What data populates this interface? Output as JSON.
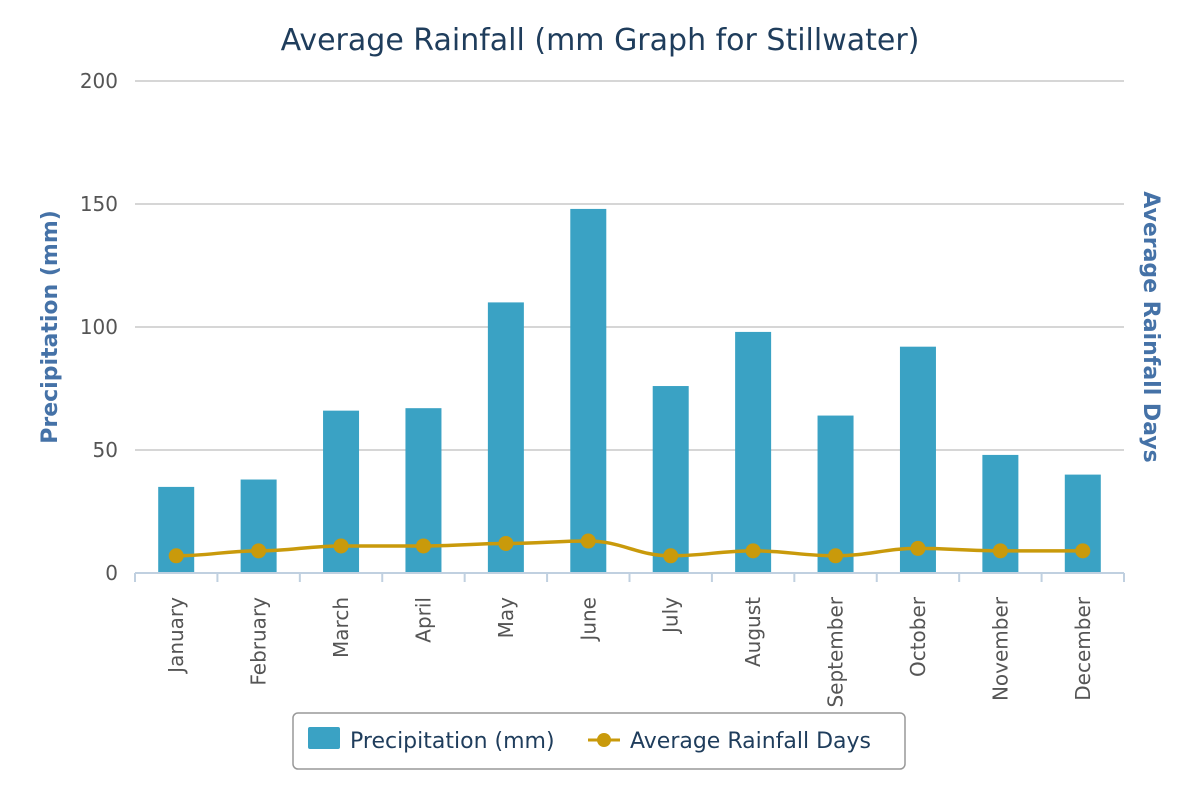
{
  "chart_data": {
    "type": "bar",
    "title": "Average Rainfall (mm Graph for Stillwater)",
    "xlabel": "",
    "ylabel": "Precipitation (mm)",
    "y2label": "Average Rainfall Days",
    "ylim": [
      0,
      200
    ],
    "yticks": [
      "0",
      "50",
      "100",
      "150",
      "200"
    ],
    "grid": true,
    "legend_position": "bottom-center",
    "categories": [
      "January",
      "February",
      "March",
      "April",
      "May",
      "June",
      "July",
      "August",
      "September",
      "October",
      "November",
      "December"
    ],
    "series": [
      {
        "name": "Precipitation (mm)",
        "type": "bar",
        "color": "#3aa2c4",
        "values": [
          35,
          38,
          66,
          67,
          110,
          148,
          76,
          98,
          64,
          92,
          48,
          40
        ]
      },
      {
        "name": "Average Rainfall Days",
        "type": "line",
        "color": "#c99a0b",
        "values": [
          7,
          9,
          11,
          11,
          12,
          13,
          7,
          9,
          7,
          10,
          9,
          9
        ]
      }
    ]
  }
}
